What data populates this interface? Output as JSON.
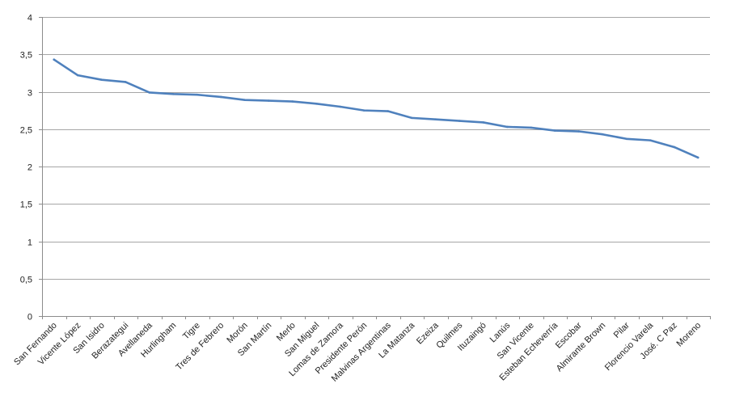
{
  "chart_data": {
    "type": "line",
    "title": "",
    "xlabel": "",
    "ylabel": "",
    "ylim": [
      0,
      4
    ],
    "y_tick_step": 0.5,
    "y_tick_labels": [
      "0",
      "0,5",
      "1",
      "1,5",
      "2",
      "2,5",
      "3",
      "3,5",
      "4"
    ],
    "grid": true,
    "legend": "none",
    "line_color": "#4f81bd",
    "categories": [
      "San Fernando",
      "Vicente López",
      "San Isidro",
      "Berazategui",
      "Avellaneda",
      "Hurlingham",
      "Tigre",
      "Tres de Febrero",
      "Morón",
      "San Martín",
      "Merlo",
      "San Miguel",
      "Lomas de Zamora",
      "Presidente Perón",
      "Malvinas Argentinas",
      "La Matanza",
      "Ezeiza",
      "Quilmes",
      "Ituzaingó",
      "Lanús",
      "San Vicente",
      "Esteban Echeverría",
      "Escobar",
      "Almirante Brown",
      "Pilar",
      "Florencio Varela",
      "José. C Paz",
      "Moreno"
    ],
    "series": [
      {
        "values": [
          3.43,
          3.22,
          3.16,
          3.13,
          2.99,
          2.97,
          2.96,
          2.93,
          2.89,
          2.88,
          2.87,
          2.84,
          2.8,
          2.75,
          2.74,
          2.65,
          2.63,
          2.61,
          2.59,
          2.53,
          2.52,
          2.48,
          2.47,
          2.43,
          2.37,
          2.35,
          2.26,
          2.12
        ]
      }
    ]
  }
}
